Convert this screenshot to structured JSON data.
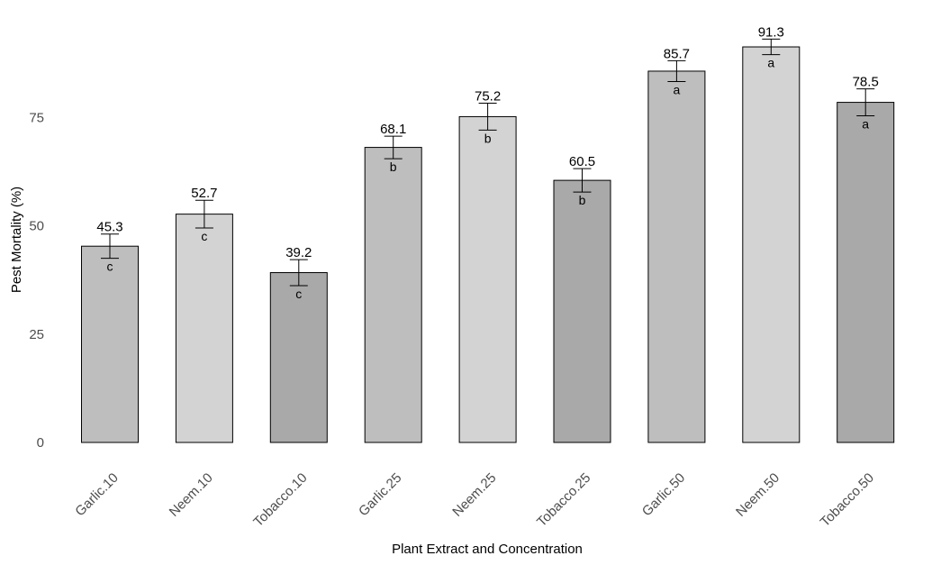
{
  "chart_data": {
    "type": "bar",
    "xlabel": "Plant Extract and Concentration",
    "ylabel": "Pest Mortality (%)",
    "ylim": [
      0,
      100
    ],
    "yticks": [
      0,
      25,
      50,
      75
    ],
    "grid": false,
    "categories": [
      "Garlic.10",
      "Neem.10",
      "Tobacco.10",
      "Garlic.25",
      "Neem.25",
      "Tobacco.25",
      "Garlic.50",
      "Neem.50",
      "Tobacco.50"
    ],
    "values": [
      45.3,
      52.7,
      39.2,
      68.1,
      75.2,
      60.5,
      85.7,
      91.3,
      78.5
    ],
    "value_labels": [
      "45.3",
      "52.7",
      "39.2",
      "68.1",
      "75.2",
      "60.5",
      "85.7",
      "91.3",
      "78.5"
    ],
    "error": [
      2.8,
      3.2,
      3.0,
      2.6,
      3.1,
      2.7,
      2.4,
      1.8,
      3.1
    ],
    "significance_letters": [
      "c",
      "c",
      "c",
      "b",
      "b",
      "b",
      "a",
      "a",
      "a"
    ],
    "colors": [
      "#bebebe",
      "#d3d3d3",
      "#a9a9a9",
      "#bebebe",
      "#d3d3d3",
      "#a9a9a9",
      "#bebebe",
      "#d3d3d3",
      "#a9a9a9"
    ],
    "bar_outline": "#000000"
  }
}
